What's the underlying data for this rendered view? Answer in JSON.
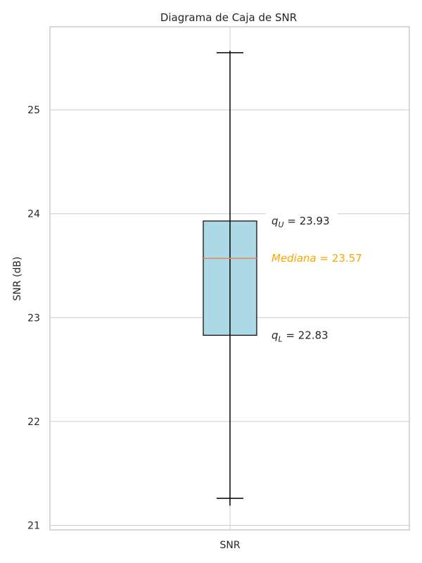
{
  "chart_data": {
    "type": "box",
    "title": "Diagrama de Caja de SNR",
    "xlabel": "",
    "ylabel": "SNR (dB)",
    "categories": [
      "SNR"
    ],
    "ylim": [
      20.99,
      25.8
    ],
    "yticks": [
      21,
      22,
      23,
      24,
      25
    ],
    "grid": true,
    "box": {
      "whisker_low": 21.26,
      "q1": 22.83,
      "median": 23.57,
      "q3": 23.93,
      "whisker_high": 25.55,
      "data_min": 21.19,
      "data_max": 25.57
    },
    "annotations": {
      "q_upper": {
        "symbol": "q",
        "sub": "U",
        "value": "23.93"
      },
      "median": {
        "word": "Mediana",
        "value": "23.57"
      },
      "q_lower": {
        "symbol": "q",
        "sub": "L",
        "value": "22.83"
      }
    },
    "colors": {
      "box_fill": "#add8e6",
      "box_edge": "#000000",
      "median_line": "#e8885a",
      "median_text": "#ffa500",
      "whisker": "#000000"
    }
  }
}
